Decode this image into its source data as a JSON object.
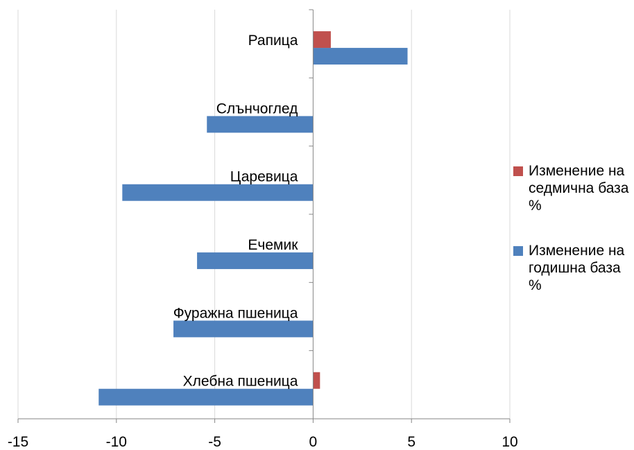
{
  "chart_data": {
    "type": "bar",
    "orientation": "horizontal",
    "title": "",
    "xlabel": "",
    "ylabel": "",
    "categories": [
      "Хлебна пшеница",
      "Фуражна пшеница",
      "Ечемик",
      "Царевица",
      "Слънчоглед",
      "Рапица"
    ],
    "series": [
      {
        "name": "Изменение на годишна база %",
        "color": "#4F81BD",
        "values": [
          -10.9,
          -7.1,
          -5.9,
          -9.7,
          -5.4,
          4.8
        ]
      },
      {
        "name": "Изменение на седмична база %",
        "color": "#C0504D",
        "values": [
          0.35,
          0,
          0,
          0,
          0,
          0.9
        ]
      }
    ],
    "xlim": [
      -15,
      10
    ],
    "xticks": [
      "-15",
      "-10",
      "-5",
      "0",
      "5",
      "10"
    ],
    "grid": true,
    "legend_position": "right"
  },
  "legend": {
    "items": [
      {
        "label_lines": [
          "Изменение на",
          "седмична база",
          "%"
        ],
        "color": "#C0504D"
      },
      {
        "label_lines": [
          "Изменение на",
          "годишна база",
          "%"
        ],
        "color": "#4F81BD"
      }
    ]
  }
}
